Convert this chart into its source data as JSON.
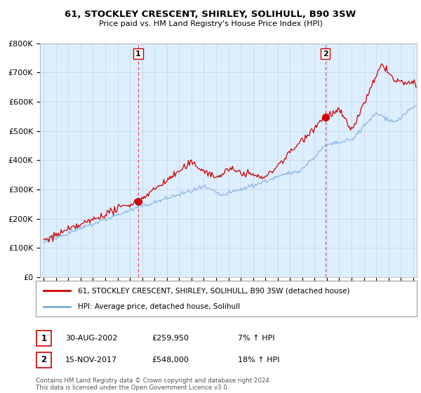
{
  "title": "61, STOCKLEY CRESCENT, SHIRLEY, SOLIHULL, B90 3SW",
  "subtitle": "Price paid vs. HM Land Registry's House Price Index (HPI)",
  "legend_label_red": "61, STOCKLEY CRESCENT, SHIRLEY, SOLIHULL, B90 3SW (detached house)",
  "legend_label_blue": "HPI: Average price, detached house, Solihull",
  "transaction1_date": "30-AUG-2002",
  "transaction1_price": "£259,950",
  "transaction1_hpi": "7% ↑ HPI",
  "transaction2_date": "15-NOV-2017",
  "transaction2_price": "£548,000",
  "transaction2_hpi": "18% ↑ HPI",
  "footer": "Contains HM Land Registry data © Crown copyright and database right 2024.\nThis data is licensed under the Open Government Licence v3.0.",
  "red_color": "#cc0000",
  "blue_color": "#7aaadd",
  "dashed_color": "#dd4444",
  "bg_color": "#ddeeff",
  "marker1_x": 2002.67,
  "marker1_y": 259950,
  "marker2_x": 2017.88,
  "marker2_y": 548000,
  "ylim": [
    0,
    800000
  ],
  "xlim_start": 1994.7,
  "xlim_end": 2025.3
}
